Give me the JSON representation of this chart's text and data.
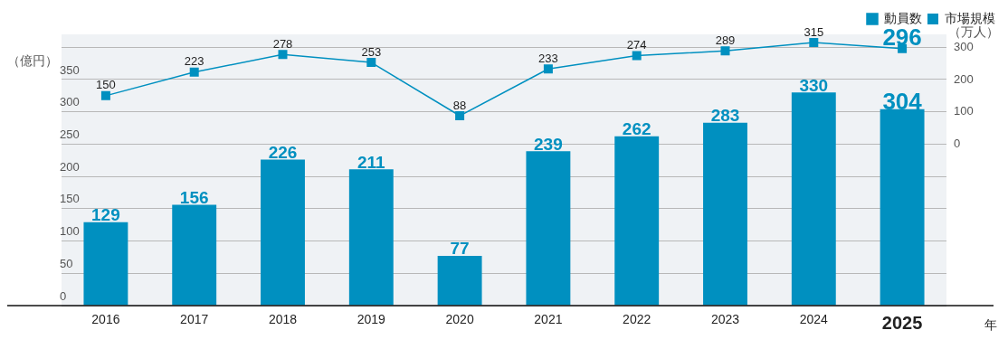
{
  "chart_data": {
    "type": "bar",
    "categories": [
      "2016",
      "2017",
      "2018",
      "2019",
      "2020",
      "2021",
      "2022",
      "2023",
      "2024",
      "2025"
    ],
    "series": [
      {
        "name": "動員数",
        "type": "line",
        "axis": "y2",
        "color": "#0090c0",
        "marker": "square",
        "values": [
          150,
          223,
          278,
          253,
          88,
          233,
          274,
          289,
          315,
          296
        ]
      },
      {
        "name": "市場規模",
        "color": "#0090c0",
        "values": [
          129,
          156,
          226,
          211,
          77,
          239,
          262,
          283,
          330,
          304
        ]
      }
    ],
    "xlabel": "年",
    "ylabel": "（億円）",
    "y2label": "（万人）",
    "ylim": [
      0,
      420
    ],
    "yticks": [
      0,
      50,
      100,
      150,
      200,
      250,
      300,
      350,
      {
        "value": 400,
        "label": null
      }
    ],
    "y2lim": [
      -500,
      340
    ],
    "y2ticks": [
      0,
      100,
      200,
      300
    ],
    "grid": "y",
    "legend": "top right",
    "data_labels": true
  }
}
